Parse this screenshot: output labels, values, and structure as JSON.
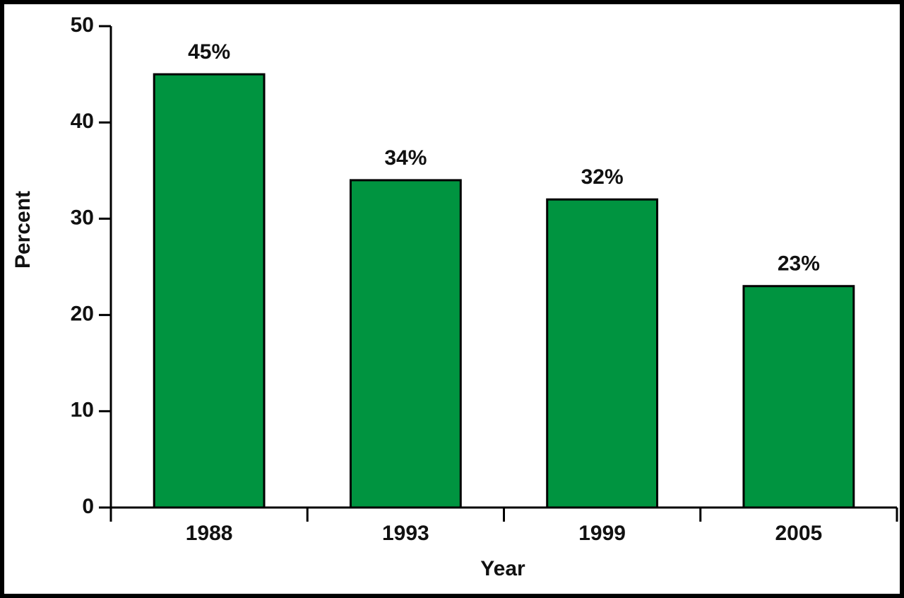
{
  "chart_data": {
    "type": "bar",
    "x_label": "Year",
    "y_label": "Percent",
    "categories": [
      "1988",
      "1993",
      "1999",
      "2005"
    ],
    "values": [
      45,
      34,
      32,
      23
    ],
    "value_labels": [
      "45%",
      "34%",
      "32%",
      "23%"
    ],
    "color": "#009440",
    "ylim": [
      0,
      50
    ],
    "yticks": [
      0,
      10,
      20,
      30,
      40,
      50
    ],
    "grid": false
  }
}
